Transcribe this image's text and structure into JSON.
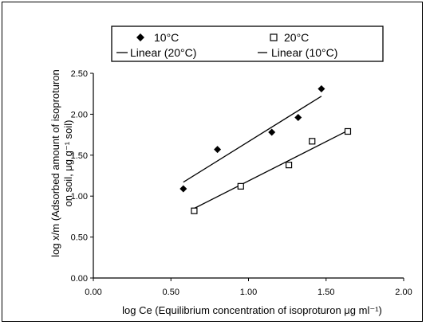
{
  "chart_data": {
    "type": "scatter",
    "xlabel": "log Ce (Equilibrium concentration of isoproturon μg ml⁻¹)",
    "ylabel_line1": "log x/m (Adsorbed amount of isoproturon",
    "ylabel_line2": "on soil, μg g⁻¹ soil)",
    "xlim": [
      0.0,
      2.0
    ],
    "ylim": [
      0.0,
      2.5
    ],
    "x_ticks": [
      0.0,
      0.5,
      1.0,
      1.5,
      2.0
    ],
    "y_ticks": [
      0.0,
      0.5,
      1.0,
      1.5,
      2.0,
      2.5
    ],
    "x_tick_labels": [
      "0.00",
      "0.50",
      "1.00",
      "1.50",
      "2.00"
    ],
    "y_tick_labels": [
      "0.00",
      "0.50",
      "1.00",
      "1.50",
      "2.00",
      "2.50"
    ],
    "grid": false,
    "legend_position": "top",
    "series": [
      {
        "name": "10°C",
        "marker": "diamond-filled",
        "color": "#000000",
        "x": [
          0.58,
          0.8,
          1.15,
          1.32,
          1.47
        ],
        "y": [
          1.09,
          1.57,
          1.78,
          1.96,
          2.31
        ]
      },
      {
        "name": "20°C",
        "marker": "square-open",
        "color": "#000000",
        "x": [
          0.65,
          0.95,
          1.26,
          1.41,
          1.64
        ],
        "y": [
          0.82,
          1.12,
          1.38,
          1.67,
          1.79
        ]
      }
    ],
    "trendlines": [
      {
        "name": "Linear (20°C)",
        "x": [
          0.65,
          1.64
        ],
        "y": [
          0.85,
          1.8
        ]
      },
      {
        "name": "Linear (10°C)",
        "x": [
          0.58,
          1.47
        ],
        "y": [
          1.17,
          2.22
        ]
      }
    ]
  }
}
